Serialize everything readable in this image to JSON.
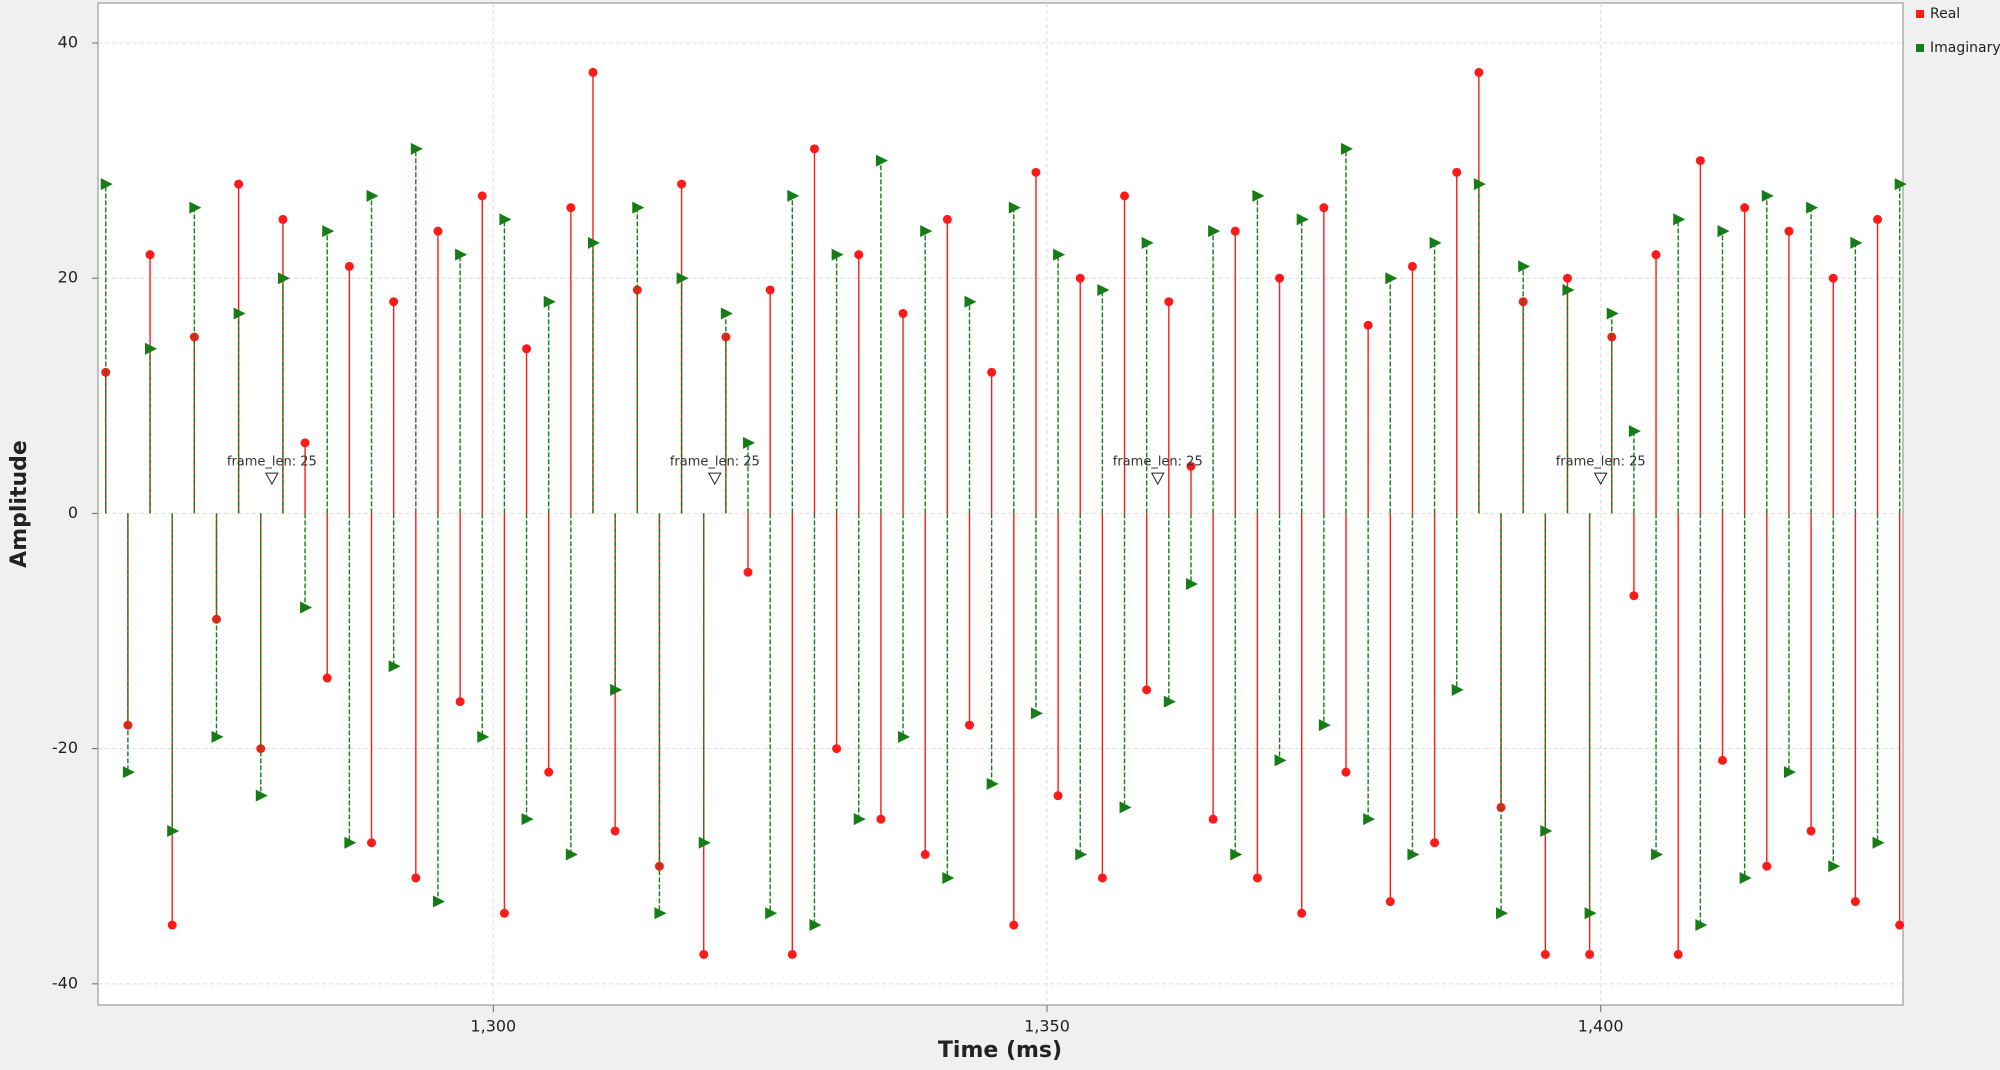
{
  "chart_data": {
    "type": "stem",
    "x_label": "Time (ms)",
    "y_label": "Amplitude",
    "xlim": [
      1264.3,
      1427.3
    ],
    "ylim": [
      -41.8,
      43.4
    ],
    "xticks": [
      {
        "value": 1300,
        "label": "1,300"
      },
      {
        "value": 1350,
        "label": "1,350"
      },
      {
        "value": 1400,
        "label": "1,400"
      }
    ],
    "yticks": [
      -40,
      -20,
      0,
      20,
      40
    ],
    "grid": true,
    "legend": "right",
    "x": [
      1265,
      1267,
      1269,
      1271,
      1273,
      1275,
      1277,
      1279,
      1281,
      1283,
      1285,
      1287,
      1289,
      1291,
      1293,
      1295,
      1297,
      1299,
      1301,
      1303,
      1305,
      1307,
      1309,
      1311,
      1313,
      1315,
      1317,
      1319,
      1321,
      1323,
      1325,
      1327,
      1329,
      1331,
      1333,
      1335,
      1337,
      1339,
      1341,
      1343,
      1345,
      1347,
      1349,
      1351,
      1353,
      1355,
      1357,
      1359,
      1361,
      1363,
      1365,
      1367,
      1369,
      1371,
      1373,
      1375,
      1377,
      1379,
      1381,
      1383,
      1385,
      1387,
      1389,
      1391,
      1393,
      1395,
      1397,
      1399,
      1401,
      1403,
      1405,
      1407,
      1409,
      1411,
      1413,
      1415,
      1417,
      1419,
      1421,
      1423,
      1425,
      1427
    ],
    "series": [
      {
        "name": "Real",
        "color": "#ff1a1a",
        "marker": "circle",
        "values": [
          12,
          -18,
          22,
          -35,
          15,
          -9,
          28,
          -20,
          25,
          6,
          -14,
          21,
          -28,
          18,
          -31,
          24,
          -16,
          27,
          -34,
          14,
          -22,
          26,
          37.5,
          -27,
          19,
          -30,
          28,
          -37.5,
          15,
          -5,
          19,
          -37.5,
          31,
          -20,
          22,
          -26,
          17,
          -29,
          25,
          -18,
          12,
          -35,
          29,
          -24,
          20,
          -31,
          27,
          -15,
          18,
          4,
          -26,
          24,
          -31,
          20,
          -34,
          26,
          -22,
          16,
          -33,
          21,
          -28,
          29,
          37.5,
          -25,
          18,
          -37.5,
          20,
          -37.5,
          15,
          -7,
          22,
          -37.5,
          30,
          -21,
          26,
          -30,
          24,
          -27,
          20,
          -33,
          25,
          -35
        ]
      },
      {
        "name": "Imaginary",
        "color": "#167d16",
        "marker": "triangle",
        "values": [
          28,
          -22,
          14,
          -27,
          26,
          -19,
          17,
          -24,
          20,
          -8,
          24,
          -28,
          27,
          -13,
          31,
          -33,
          22,
          -19,
          25,
          -26,
          18,
          -29,
          23,
          -15,
          26,
          -34,
          20,
          -28,
          17,
          6,
          -34,
          27,
          -35,
          22,
          -26,
          30,
          -19,
          24,
          -31,
          18,
          -23,
          26,
          -17,
          22,
          -29,
          19,
          -25,
          23,
          -16,
          -6,
          24,
          -29,
          27,
          -21,
          25,
          -18,
          31,
          -26,
          20,
          -29,
          23,
          -15,
          28,
          -34,
          21,
          -27,
          19,
          -34,
          17,
          7,
          -29,
          25,
          -35,
          24,
          -31,
          27,
          -22,
          26,
          -30,
          23,
          -28,
          28
        ]
      }
    ],
    "tags": [
      {
        "x": 1280,
        "y": 3,
        "label": "frame_len: 25"
      },
      {
        "x": 1320,
        "y": 3,
        "label": "frame_len: 25"
      },
      {
        "x": 1360,
        "y": 3,
        "label": "frame_len: 25"
      },
      {
        "x": 1400,
        "y": 3,
        "label": "frame_len: 25"
      }
    ]
  }
}
